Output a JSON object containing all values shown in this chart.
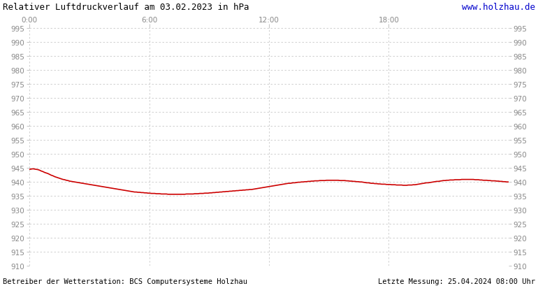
{
  "title": "Relativer Luftdruckverlauf am 03.02.2023 in hPa",
  "website": "www.holzhau.de",
  "footer_left": "Betreiber der Wetterstation: BCS Computersysteme Holzhau",
  "footer_right": "Letzte Messung: 25.04.2024 08:00 Uhr",
  "x_ticks": [
    "0:00",
    "6:00",
    "12:00",
    "18:00"
  ],
  "x_tick_positions": [
    0,
    0.25,
    0.5,
    0.75
  ],
  "y_min": 910,
  "y_max": 995,
  "y_tick_step": 5,
  "background_color": "#ffffff",
  "grid_color": "#c8c8c8",
  "line_color": "#cc0000",
  "title_color": "#000000",
  "website_color": "#0000cc",
  "axis_label_color": "#888888",
  "footer_color": "#000000",
  "pressure_data": [
    944.5,
    944.6,
    944.7,
    944.6,
    944.5,
    944.4,
    944.2,
    943.9,
    943.7,
    943.4,
    943.2,
    943.0,
    942.7,
    942.4,
    942.2,
    941.9,
    941.7,
    941.5,
    941.3,
    941.1,
    940.9,
    940.8,
    940.6,
    940.5,
    940.3,
    940.2,
    940.1,
    940.0,
    939.9,
    939.8,
    939.7,
    939.6,
    939.5,
    939.4,
    939.3,
    939.2,
    939.1,
    939.0,
    938.9,
    938.8,
    938.7,
    938.6,
    938.5,
    938.4,
    938.3,
    938.2,
    938.1,
    938.0,
    937.9,
    937.8,
    937.7,
    937.6,
    937.5,
    937.4,
    937.3,
    937.2,
    937.1,
    937.0,
    936.9,
    936.8,
    936.7,
    936.6,
    936.5,
    936.4,
    936.4,
    936.3,
    936.3,
    936.2,
    936.2,
    936.1,
    936.1,
    936.0,
    936.0,
    935.9,
    935.9,
    935.9,
    935.8,
    935.8,
    935.8,
    935.7,
    935.7,
    935.7,
    935.7,
    935.6,
    935.6,
    935.6,
    935.6,
    935.6,
    935.6,
    935.6,
    935.6,
    935.6,
    935.6,
    935.6,
    935.7,
    935.7,
    935.7,
    935.7,
    935.7,
    935.8,
    935.8,
    935.8,
    935.9,
    935.9,
    935.9,
    936.0,
    936.0,
    936.0,
    936.1,
    936.1,
    936.2,
    936.2,
    936.3,
    936.3,
    936.4,
    936.4,
    936.5,
    936.5,
    936.6,
    936.6,
    936.7,
    936.7,
    936.8,
    936.8,
    936.9,
    936.9,
    937.0,
    937.0,
    937.1,
    937.1,
    937.2,
    937.2,
    937.3,
    937.3,
    937.4,
    937.5,
    937.6,
    937.7,
    937.8,
    937.9,
    938.0,
    938.1,
    938.2,
    938.3,
    938.4,
    938.5,
    938.6,
    938.7,
    938.8,
    938.9,
    939.0,
    939.1,
    939.2,
    939.3,
    939.4,
    939.5,
    939.5,
    939.6,
    939.7,
    939.7,
    939.8,
    939.9,
    939.9,
    940.0,
    940.0,
    940.1,
    940.1,
    940.2,
    940.2,
    940.3,
    940.3,
    940.4,
    940.4,
    940.4,
    940.5,
    940.5,
    940.5,
    940.5,
    940.6,
    940.6,
    940.6,
    940.6,
    940.6,
    940.6,
    940.6,
    940.6,
    940.5,
    940.5,
    940.5,
    940.5,
    940.4,
    940.4,
    940.3,
    940.3,
    940.2,
    940.2,
    940.1,
    940.1,
    940.0,
    940.0,
    939.9,
    939.8,
    939.7,
    939.7,
    939.6,
    939.5,
    939.5,
    939.4,
    939.4,
    939.3,
    939.3,
    939.2,
    939.2,
    939.2,
    939.1,
    939.1,
    939.1,
    939.0,
    939.0,
    939.0,
    938.9,
    938.9,
    938.9,
    938.9,
    938.8,
    938.8,
    938.8,
    938.9,
    938.9,
    938.9,
    939.0,
    939.0,
    939.1,
    939.2,
    939.3,
    939.4,
    939.5,
    939.6,
    939.7,
    939.7,
    939.8,
    939.9,
    940.0,
    940.1,
    940.2,
    940.2,
    940.3,
    940.4,
    940.5,
    940.5,
    940.6,
    940.6,
    940.7,
    940.7,
    940.7,
    940.8,
    940.8,
    940.8,
    940.8,
    940.9,
    940.9,
    940.9,
    940.9,
    940.9,
    940.9,
    940.9,
    940.9,
    940.8,
    940.8,
    940.8,
    940.7,
    940.7,
    940.6,
    940.6,
    940.6,
    940.5,
    940.5,
    940.4,
    940.4,
    940.4,
    940.3,
    940.3,
    940.2,
    940.2,
    940.1,
    940.1,
    940.0,
    940.0
  ]
}
